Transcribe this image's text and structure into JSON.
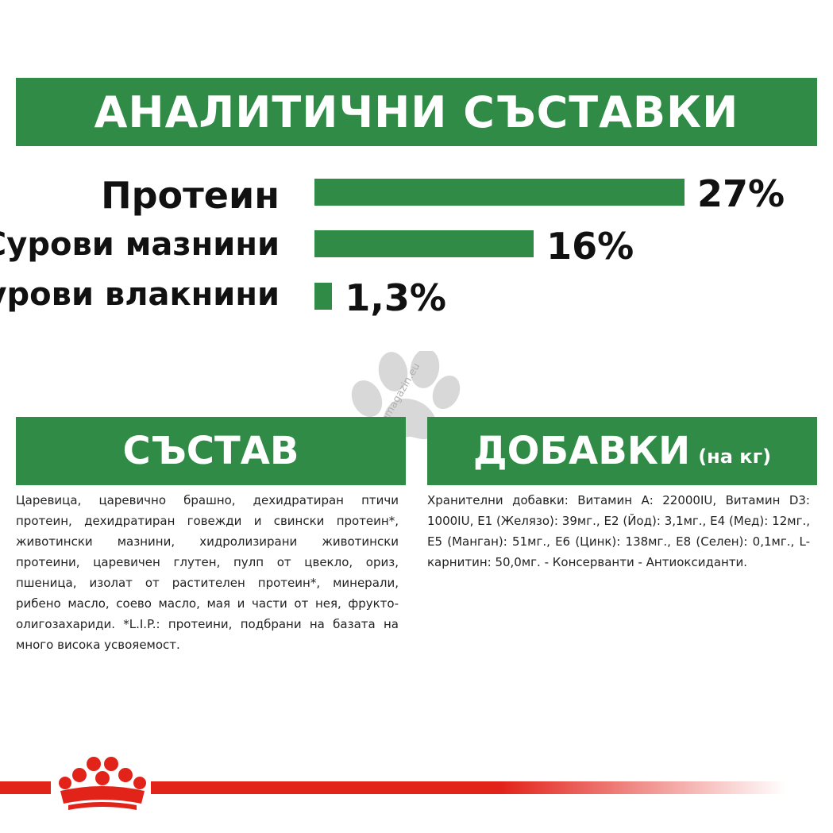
{
  "analytic": {
    "title": "АНАЛИТИЧНИ СЪСТАВКИ",
    "rows": [
      {
        "label": "Протеин",
        "value_text": "27%",
        "value": 27
      },
      {
        "label": "Сурови мазнини",
        "value_text": "16%",
        "value": 16
      },
      {
        "label": "Сурови влакнини",
        "value_text": "1,3%",
        "value": 1.3
      }
    ]
  },
  "composition": {
    "title": "СЪСТАВ",
    "text": "Царевица, царевично брашно, дехидратиран птичи протеин, дехидратиран говежди и свински протеин*, животински мазнини, хидролизирани животински протеини, царевичен глутен, пулп от цвекло, ориз, пшеница, изолат от растителен протеин*, минерали, рибено масло, соево масло, мая и части от нея, фрукто-олигозахариди. *L.I.P.: протеини, подбрани на базата на много висока усвояемост."
  },
  "additives": {
    "title": "ДОБАВКИ",
    "title_suffix": "(на кг)",
    "text": "Хранителни добавки: Витамин А: 22000IU, Витамин D3: 1000IU, Е1 (Желязо): 39мг., Е2 (Йод): 3,1мг., Е4 (Мед): 12мг., Е5 (Манган): 51мг., Е6 (Цинк): 138мг., Е8 (Селен): 0,1мг., L-карнитин: 50,0мг. - Консерванти - Антиоксиданти."
  },
  "watermark": "zoomagazin.eu",
  "colors": {
    "green": "#2f8b45",
    "red": "#e2231a",
    "watermark_grey": "#d8d8d8"
  }
}
